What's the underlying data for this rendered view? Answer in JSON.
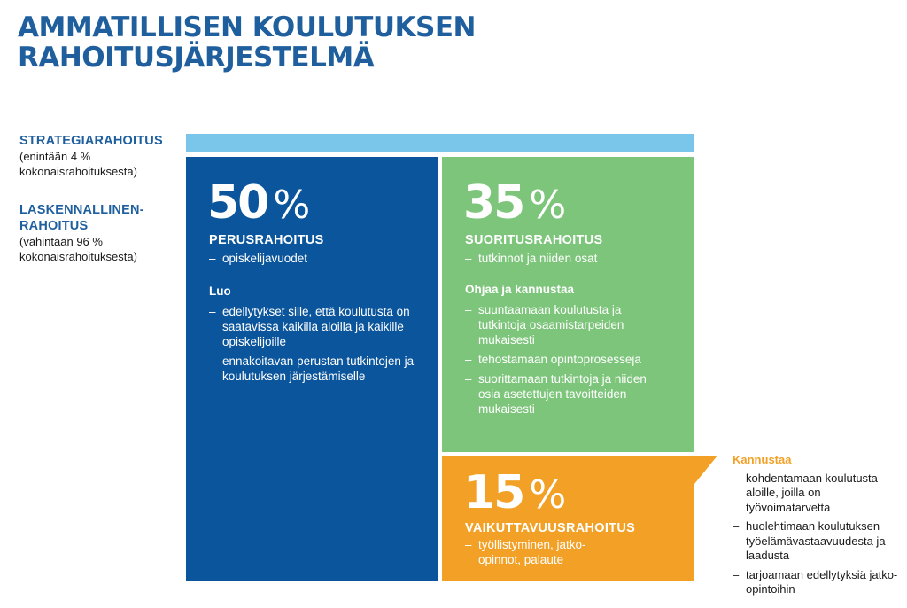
{
  "title": [
    "AMMATILLISEN KOULUTUKSEN",
    "RAHOITUSJÄRJESTELMÄ"
  ],
  "colors": {
    "title": "#1f5f9e",
    "strategy": "#7ac5ea",
    "base": "#0b559c",
    "performance": "#7dc57b",
    "impact": "#f2a126"
  },
  "side_labels": {
    "strategy": {
      "head": [
        "STRATEGIARAHOITUS"
      ],
      "sub": [
        "(enintään 4 %",
        "kokonaisrahoituksesta)"
      ]
    },
    "computational": {
      "head": [
        "LASKENNALLINEN-",
        "RAHOITUS"
      ],
      "sub": [
        "(vähintään 96 %",
        "kokonaisrahoituksesta)"
      ]
    }
  },
  "blocks": {
    "base": {
      "percent": "50",
      "percent_sign": "%",
      "title": "PERUSRAHOITUS",
      "items": [
        "opiskelijavuodet"
      ],
      "section_title": "Luo",
      "section_items": [
        "edellytykset sille, että koulutusta on saatavissa kaikilla aloilla ja kaikille opiskelijoille",
        "ennakoitavan perustan tutkintojen ja koulutuksen järjestämiselle"
      ]
    },
    "performance": {
      "percent": "35",
      "percent_sign": "%",
      "title": "SUORITUSRAHOITUS",
      "items": [
        "tutkinnot ja niiden osat"
      ],
      "section_title": "Ohjaa ja kannustaa",
      "section_items": [
        "suuntaamaan koulutusta ja tutkintoja osaamistarpeiden mukaisesti",
        "tehostamaan opintoprosesseja",
        "suorittamaan tutkintoja ja niiden osia asetettujen tavoitteiden mukaisesti"
      ]
    },
    "impact": {
      "percent": "15",
      "percent_sign": "%",
      "title": "VAIKUTTAVUUSRAHOITUS",
      "items": [
        "työllistyminen, jatko-opinnot, palaute"
      ]
    }
  },
  "kannustaa": {
    "title": "Kannustaa",
    "items": [
      "kohdentamaan koulutusta aloille, joilla on työvoimatarvetta",
      "huolehtimaan koulutuksen työelämävastaavuudesta ja laadusta",
      "tarjoamaan edellytyksiä jatko-opintoihin"
    ]
  }
}
